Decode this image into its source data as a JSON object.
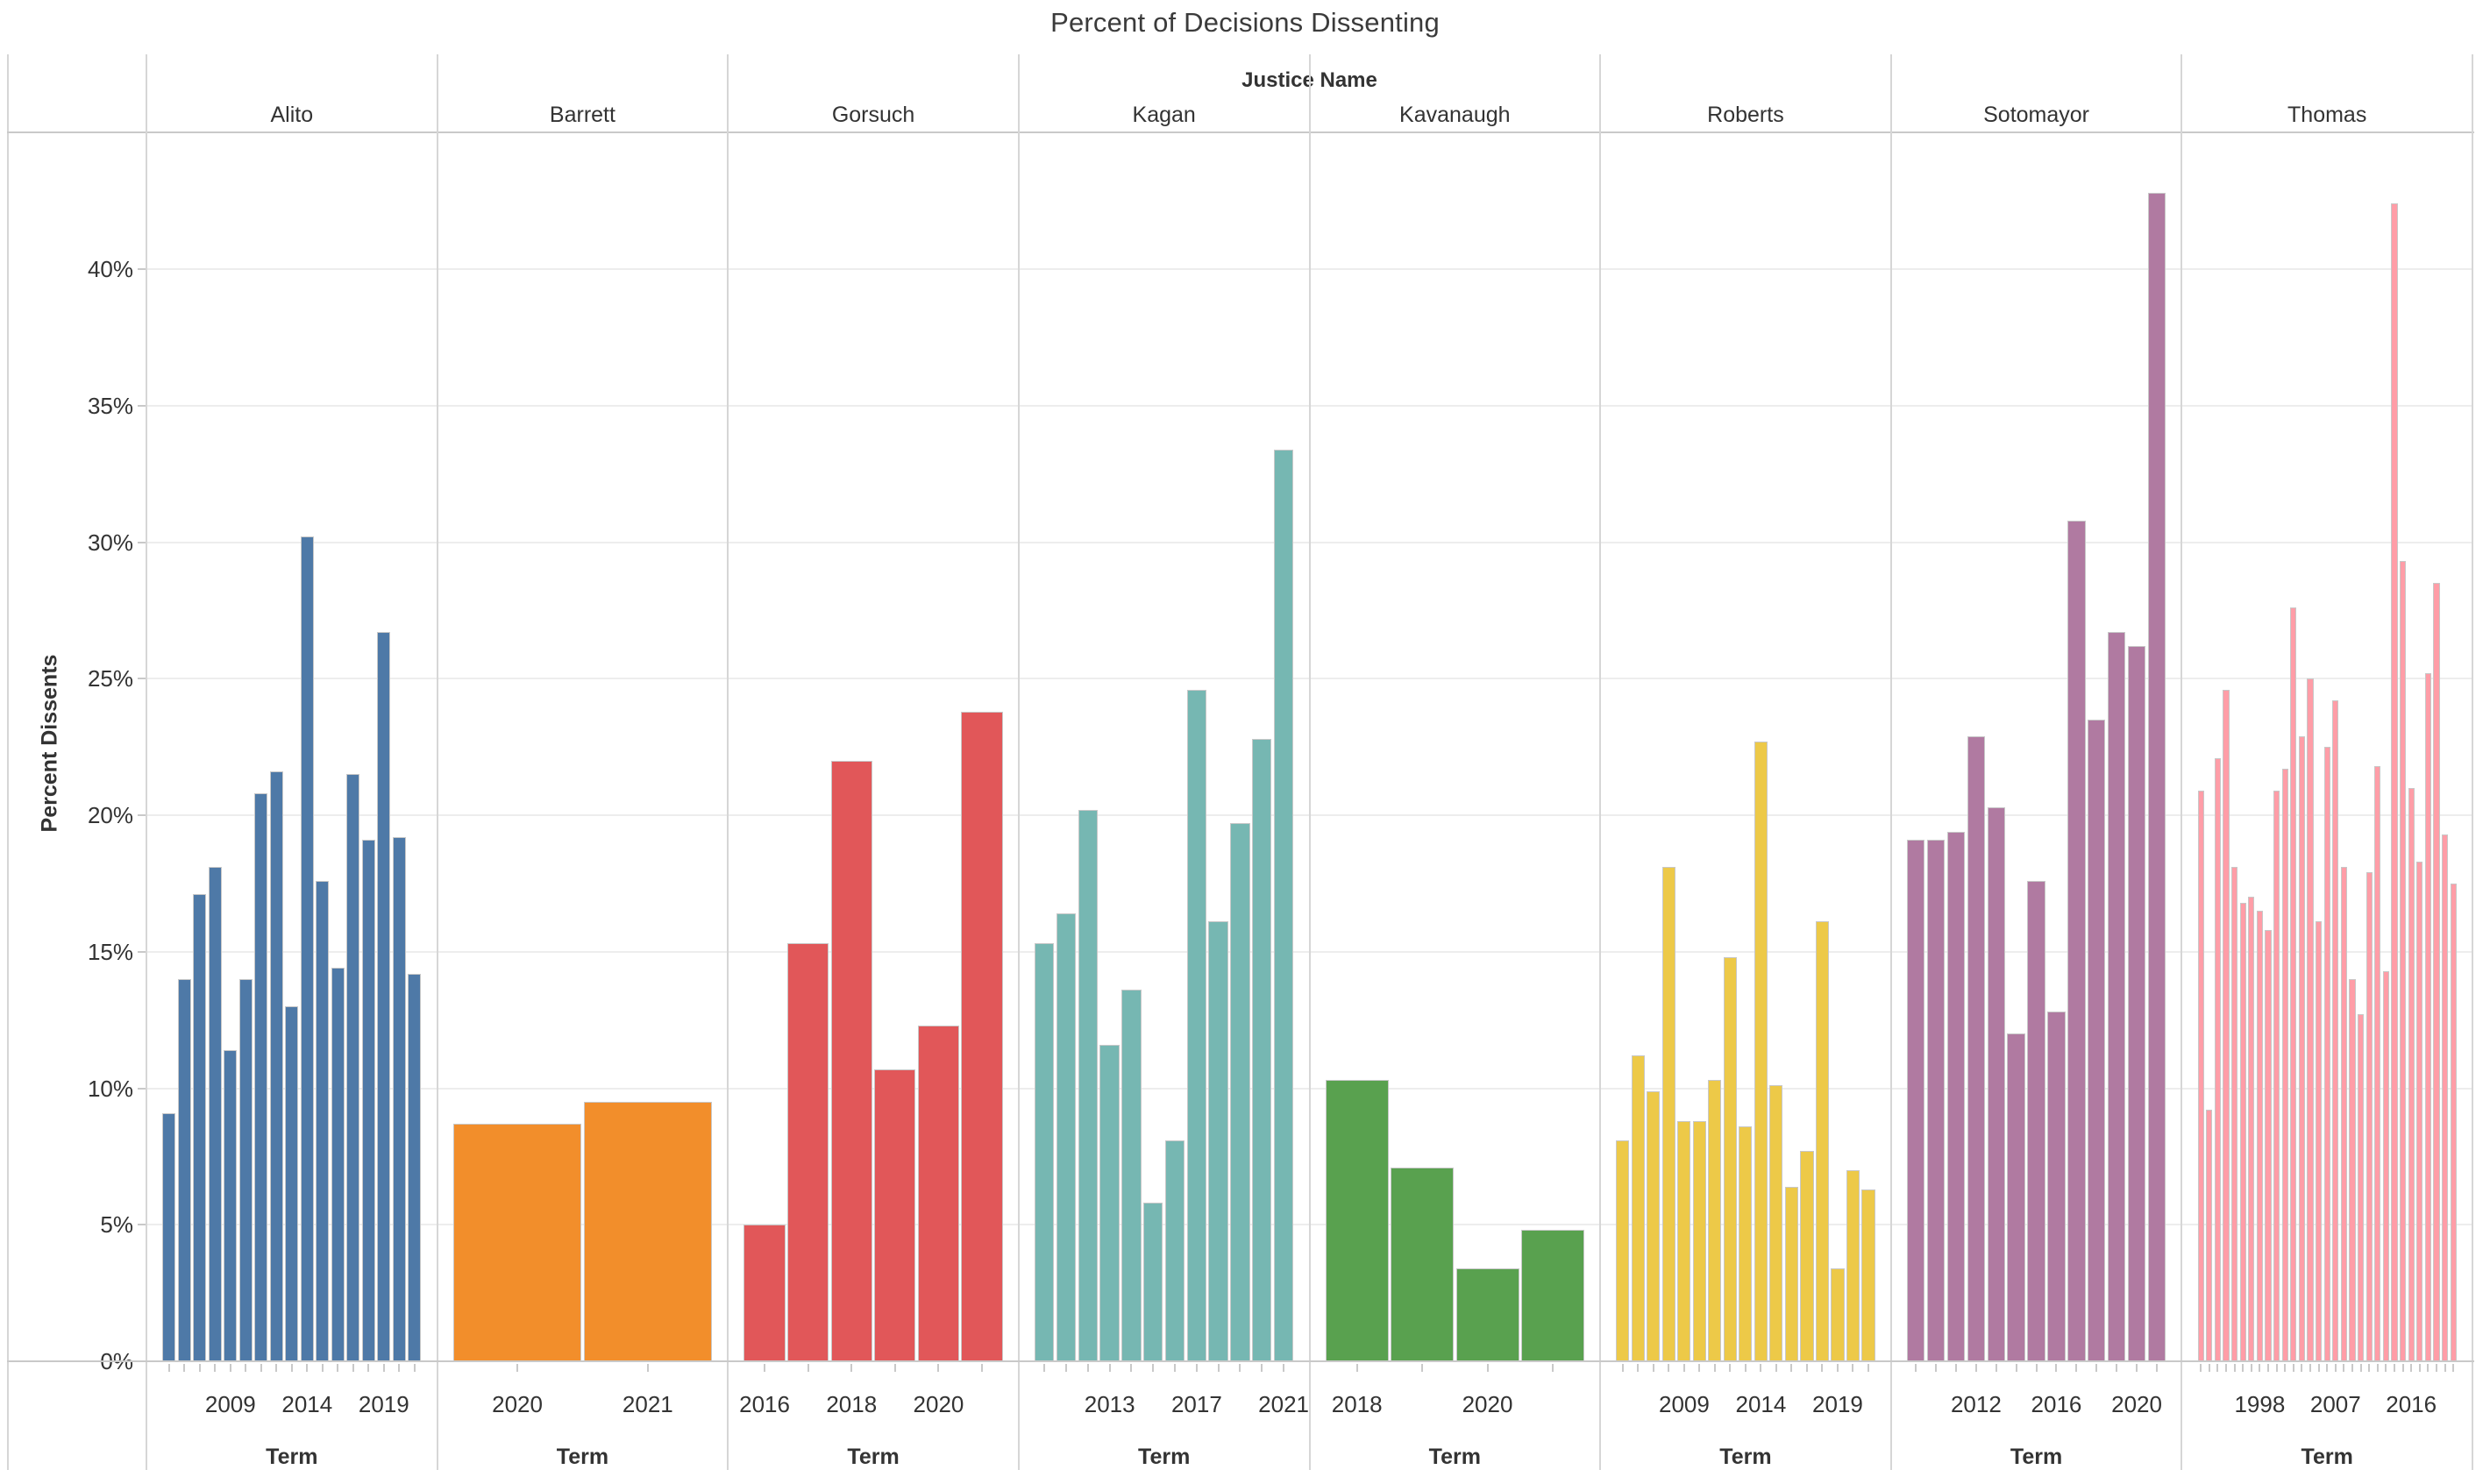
{
  "title": "Percent of Decisions Dissenting",
  "column_field_label": "Justice Name",
  "y_axis": {
    "title": "Percent Dissents",
    "tick_labels": [
      "0%",
      "5%",
      "10%",
      "15%",
      "20%",
      "25%",
      "30%",
      "35%",
      "40%"
    ],
    "gridline_step_percent": 5,
    "max_percent": 45
  },
  "x_axis": {
    "label": "Term"
  },
  "chart_data": {
    "type": "bar",
    "layout": "small-multiples-columns-by-justice",
    "title": "Percent of Decisions Dissenting",
    "xlabel": "Term",
    "ylabel": "Percent Dissents",
    "ylim": [
      0,
      45
    ],
    "grid": true,
    "panels": [
      {
        "justice": "Alito",
        "color": "#4e79a7",
        "first_term": 2005,
        "values": [
          9.1,
          14.0,
          17.1,
          18.1,
          11.4,
          14.0,
          20.8,
          21.6,
          13.0,
          30.2,
          17.6,
          14.4,
          21.5,
          19.1,
          26.7,
          19.2,
          14.2
        ],
        "tick_indices": [
          4,
          9,
          14
        ],
        "tick_labels": [
          "2009",
          "2014",
          "2019"
        ]
      },
      {
        "justice": "Barrett",
        "color": "#f28e2b",
        "first_term": 2020,
        "values": [
          8.7,
          9.5
        ],
        "tick_indices": [
          0,
          1
        ],
        "tick_labels": [
          "2020",
          "2021"
        ]
      },
      {
        "justice": "Gorsuch",
        "color": "#e15759",
        "first_term": 2016,
        "values": [
          5.0,
          15.3,
          22.0,
          10.7,
          12.3,
          23.8
        ],
        "tick_indices": [
          0,
          2,
          4
        ],
        "tick_labels": [
          "2016",
          "2018",
          "2020"
        ]
      },
      {
        "justice": "Kagan",
        "color": "#76b7b2",
        "first_term": 2010,
        "values": [
          15.3,
          16.4,
          20.2,
          11.6,
          13.6,
          5.8,
          8.1,
          24.6,
          16.1,
          19.7,
          22.8,
          33.4
        ],
        "tick_indices": [
          3,
          7,
          11
        ],
        "tick_labels": [
          "2013",
          "2017",
          "2021"
        ]
      },
      {
        "justice": "Kavanaugh",
        "color": "#59a14f",
        "first_term": 2018,
        "values": [
          10.3,
          7.1,
          3.4,
          4.8
        ],
        "tick_indices": [
          0,
          2
        ],
        "tick_labels": [
          "2018",
          "2020"
        ]
      },
      {
        "justice": "Roberts",
        "color": "#edc948",
        "first_term": 2005,
        "values": [
          8.1,
          11.2,
          9.9,
          18.1,
          8.8,
          8.8,
          10.3,
          14.8,
          8.6,
          22.7,
          10.1,
          6.4,
          7.7,
          16.1,
          3.4,
          7.0,
          6.3
        ],
        "tick_indices": [
          4,
          9,
          14
        ],
        "tick_labels": [
          "2009",
          "2014",
          "2019"
        ]
      },
      {
        "justice": "Sotomayor",
        "color": "#b07aa1",
        "first_term": 2009,
        "values": [
          19.1,
          19.1,
          19.4,
          22.9,
          20.3,
          12.0,
          17.6,
          12.8,
          30.8,
          23.5,
          26.7,
          26.2,
          42.8
        ],
        "tick_indices": [
          3,
          7,
          11
        ],
        "tick_labels": [
          "2012",
          "2016",
          "2020"
        ]
      },
      {
        "justice": "Thomas",
        "color": "#ff9da7",
        "first_term": 1991,
        "values": [
          20.9,
          9.2,
          22.1,
          24.6,
          18.1,
          16.8,
          17.0,
          16.5,
          15.8,
          20.9,
          21.7,
          27.6,
          22.9,
          25.0,
          16.1,
          22.5,
          24.2,
          18.1,
          14.0,
          12.7,
          17.9,
          21.8,
          14.3,
          42.4,
          29.3,
          21.0,
          18.3,
          25.2,
          28.5,
          19.3,
          17.5
        ],
        "tick_indices": [
          7,
          16,
          25
        ],
        "tick_labels": [
          "1998",
          "2007",
          "2016"
        ]
      }
    ]
  }
}
